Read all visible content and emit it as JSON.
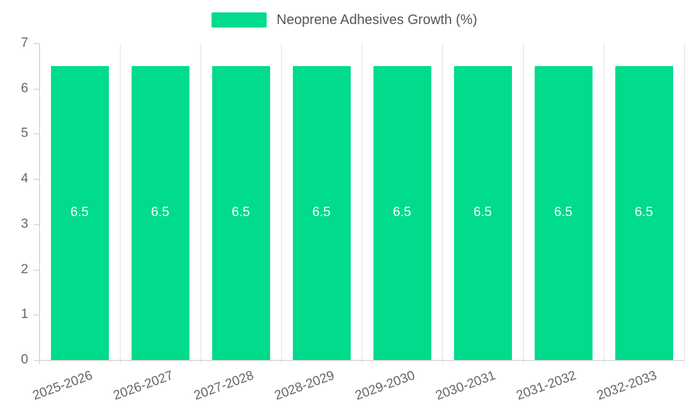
{
  "chart_data": {
    "type": "bar",
    "title": "Neoprene Adhesives Growth (%)",
    "categories": [
      "2025-2026",
      "2026-2027",
      "2027-2028",
      "2028-2029",
      "2029-2030",
      "2030-2031",
      "2031-2032",
      "2032-2033"
    ],
    "values": [
      6.5,
      6.5,
      6.5,
      6.5,
      6.5,
      6.5,
      6.5,
      6.5
    ],
    "bar_value_labels": [
      "6.5",
      "6.5",
      "6.5",
      "6.5",
      "6.5",
      "6.5",
      "6.5",
      "6.5"
    ],
    "xlabel": "",
    "ylabel": "",
    "ylim": [
      0,
      7
    ],
    "yticks": [
      "0",
      "1",
      "2",
      "3",
      "4",
      "5",
      "6",
      "7"
    ],
    "legend_position": "top",
    "grid": "vertical",
    "colors": {
      "bar": "#00DB8C",
      "bar_label_text": "#ffffff",
      "axis_text": "#666666",
      "legend_text": "#555555",
      "grid_line": "#e2e2e2",
      "axis_line": "#c8c8c8"
    }
  }
}
